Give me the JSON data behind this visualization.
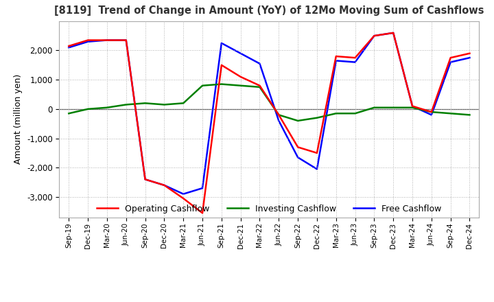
{
  "title": "[8119]  Trend of Change in Amount (YoY) of 12Mo Moving Sum of Cashflows",
  "ylabel": "Amount (million yen)",
  "x_labels": [
    "Sep-19",
    "Dec-19",
    "Mar-20",
    "Jun-20",
    "Sep-20",
    "Dec-20",
    "Mar-21",
    "Jun-21",
    "Sep-21",
    "Dec-21",
    "Mar-22",
    "Jun-22",
    "Sep-22",
    "Dec-22",
    "Mar-23",
    "Jun-23",
    "Sep-23",
    "Dec-23",
    "Mar-24",
    "Jun-24",
    "Sep-24",
    "Dec-24"
  ],
  "operating": [
    2150,
    2350,
    2350,
    2350,
    -2400,
    -2600,
    -3050,
    -3550,
    1500,
    1100,
    800,
    -200,
    -1300,
    -1500,
    1800,
    1750,
    2500,
    2600,
    100,
    -100,
    1750,
    1900
  ],
  "investing": [
    -150,
    0,
    50,
    150,
    200,
    150,
    200,
    800,
    850,
    800,
    750,
    -200,
    -400,
    -300,
    -150,
    -150,
    50,
    50,
    50,
    -100,
    -150,
    -200
  ],
  "free": [
    2100,
    2300,
    2350,
    2350,
    -2400,
    -2600,
    -2900,
    -2700,
    2250,
    1900,
    1550,
    -400,
    -1650,
    -2050,
    1650,
    1600,
    2500,
    2600,
    100,
    -200,
    1600,
    1750
  ],
  "ylim": [
    -3700,
    3000
  ],
  "yticks": [
    -3000,
    -2000,
    -1000,
    0,
    1000,
    2000
  ],
  "colors": {
    "operating": "#ff0000",
    "investing": "#008000",
    "free": "#0000ff"
  },
  "legend_labels": [
    "Operating Cashflow",
    "Investing Cashflow",
    "Free Cashflow"
  ],
  "background_color": "#ffffff",
  "grid_color": "#b0b0b0"
}
